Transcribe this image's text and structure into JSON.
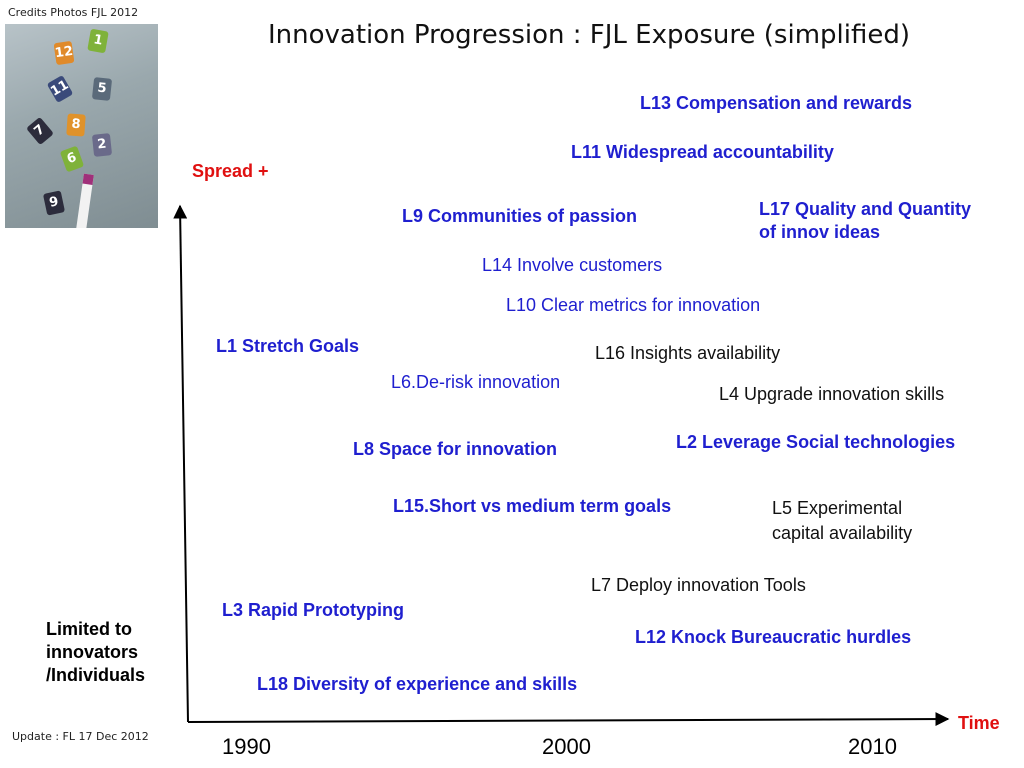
{
  "credits": "Credits Photos FJL  2012",
  "update": "Update : FL  17 Dec 2012",
  "title": "Innovation  Progression : FJL Exposure (simplified)",
  "axes": {
    "y_top_label": "Spread +",
    "y_bottom_label_lines": [
      "Limited to",
      "innovators",
      "/Individuals"
    ],
    "x_label": "Time",
    "x_ticks": [
      "1990",
      "2000",
      "2010"
    ]
  },
  "photo": {
    "tiles": [
      "12",
      "1",
      "11",
      "5",
      "8",
      "2",
      "7",
      "6",
      "9"
    ]
  },
  "levers": [
    {
      "id": "L13",
      "text": "L13 Compensation and rewards"
    },
    {
      "id": "L11",
      "text": "L11 Widespread accountability"
    },
    {
      "id": "L17",
      "text_lines": [
        "L17 Quality and Quantity",
        "of innov ideas"
      ]
    },
    {
      "id": "L9",
      "text": "L9 Communities of passion"
    },
    {
      "id": "L14",
      "text": "L14 Involve customers"
    },
    {
      "id": "L10",
      "text": "L10 Clear metrics for innovation"
    },
    {
      "id": "L1",
      "text": "L1 Stretch Goals"
    },
    {
      "id": "L16",
      "text": "L16 Insights availability"
    },
    {
      "id": "L6",
      "text": "L6.De-risk innovation"
    },
    {
      "id": "L4",
      "text": "L4 Upgrade innovation skills"
    },
    {
      "id": "L2",
      "text": "L2 Leverage Social technologies"
    },
    {
      "id": "L8",
      "text": "L8 Space for innovation"
    },
    {
      "id": "L15",
      "text": "L15.Short vs medium term goals"
    },
    {
      "id": "L5",
      "text_lines": [
        "L5 Experimental",
        "capital availability"
      ]
    },
    {
      "id": "L7",
      "text": "L7 Deploy innovation Tools"
    },
    {
      "id": "L3",
      "text": "L3 Rapid Prototyping"
    },
    {
      "id": "L12",
      "text": "L12 Knock Bureaucratic hurdles"
    },
    {
      "id": "L18",
      "text": "L18 Diversity of experience and skills"
    }
  ],
  "colors": {
    "blue": "#1f1fcf",
    "red": "#e01010",
    "black": "#111111"
  }
}
